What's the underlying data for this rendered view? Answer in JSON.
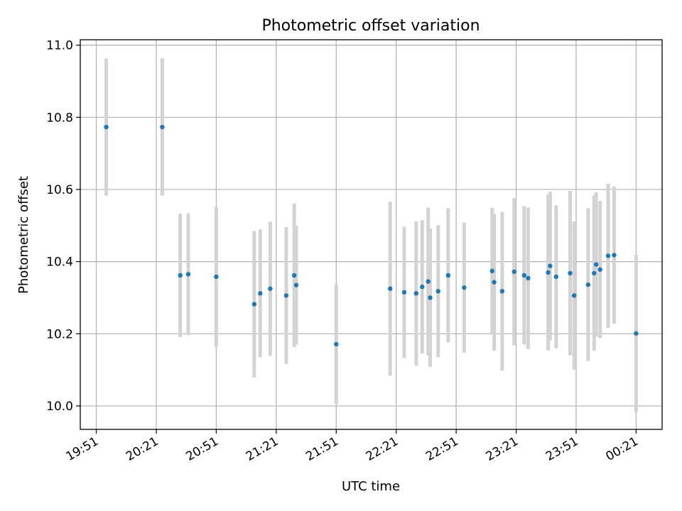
{
  "chart_data": {
    "type": "scatter",
    "title": "Photometric offset variation",
    "xlabel": "UTC time",
    "ylabel": "Photometric offset",
    "x_unit": "time (HH:MM, UTC)",
    "xlim": [
      "19:43",
      "00:34"
    ],
    "ylim": [
      9.935,
      11.015
    ],
    "x_ticks": [
      "19:51",
      "20:21",
      "20:51",
      "21:21",
      "21:51",
      "22:21",
      "22:51",
      "23:21",
      "23:51",
      "00:21"
    ],
    "y_ticks": [
      10.0,
      10.2,
      10.4,
      10.6,
      10.8,
      11.0
    ],
    "y_tick_labels": [
      "10.0",
      "10.2",
      "10.4",
      "10.6",
      "10.8",
      "11.0"
    ],
    "grid": true,
    "colors": {
      "marker": "#1f77b4",
      "errorbar": "#d3d3d3",
      "grid": "#b0b0b0"
    },
    "series": [
      {
        "points": [
          {
            "x": "19:56",
            "y": 10.773,
            "err": 0.19
          },
          {
            "x": "20:24",
            "y": 10.773,
            "err": 0.19
          },
          {
            "x": "20:33",
            "y": 10.362,
            "err": 0.171
          },
          {
            "x": "20:37",
            "y": 10.365,
            "err": 0.169
          },
          {
            "x": "20:51",
            "y": 10.358,
            "err": 0.194
          },
          {
            "x": "21:10",
            "y": 10.282,
            "err": 0.203
          },
          {
            "x": "21:13",
            "y": 10.312,
            "err": 0.177
          },
          {
            "x": "21:18",
            "y": 10.325,
            "err": 0.186
          },
          {
            "x": "21:26",
            "y": 10.306,
            "err": 0.19
          },
          {
            "x": "21:30",
            "y": 10.362,
            "err": 0.199
          },
          {
            "x": "21:31",
            "y": 10.335,
            "err": 0.165
          },
          {
            "x": "21:51",
            "y": 10.171,
            "err": 0.166
          },
          {
            "x": "22:18",
            "y": 10.325,
            "err": 0.241
          },
          {
            "x": "22:25",
            "y": 10.315,
            "err": 0.182
          },
          {
            "x": "22:31",
            "y": 10.312,
            "err": 0.2
          },
          {
            "x": "22:34",
            "y": 10.33,
            "err": 0.185
          },
          {
            "x": "22:37",
            "y": 10.345,
            "err": 0.205
          },
          {
            "x": "22:38",
            "y": 10.3,
            "err": 0.192
          },
          {
            "x": "22:42",
            "y": 10.318,
            "err": 0.183
          },
          {
            "x": "22:47",
            "y": 10.362,
            "err": 0.186
          },
          {
            "x": "22:55",
            "y": 10.328,
            "err": 0.18
          },
          {
            "x": "23:09",
            "y": 10.374,
            "err": 0.175
          },
          {
            "x": "23:10",
            "y": 10.343,
            "err": 0.19
          },
          {
            "x": "23:14",
            "y": 10.318,
            "err": 0.22
          },
          {
            "x": "23:20",
            "y": 10.372,
            "err": 0.204
          },
          {
            "x": "23:25",
            "y": 10.362,
            "err": 0.192
          },
          {
            "x": "23:27",
            "y": 10.354,
            "err": 0.196
          },
          {
            "x": "23:37",
            "y": 10.37,
            "err": 0.216
          },
          {
            "x": "23:38",
            "y": 10.388,
            "err": 0.206
          },
          {
            "x": "23:41",
            "y": 10.358,
            "err": 0.198
          },
          {
            "x": "23:48",
            "y": 10.368,
            "err": 0.228
          },
          {
            "x": "23:50",
            "y": 10.306,
            "err": 0.205
          },
          {
            "x": "23:57",
            "y": 10.336,
            "err": 0.212
          },
          {
            "x": "24:00",
            "y": 10.368,
            "err": 0.215
          },
          {
            "x": "24:01",
            "y": 10.392,
            "err": 0.2
          },
          {
            "x": "24:03",
            "y": 10.378,
            "err": 0.19
          },
          {
            "x": "24:07",
            "y": 10.416,
            "err": 0.2
          },
          {
            "x": "24:10",
            "y": 10.418,
            "err": 0.19
          },
          {
            "x": "24:21",
            "y": 10.201,
            "err": 0.218
          }
        ]
      }
    ]
  }
}
